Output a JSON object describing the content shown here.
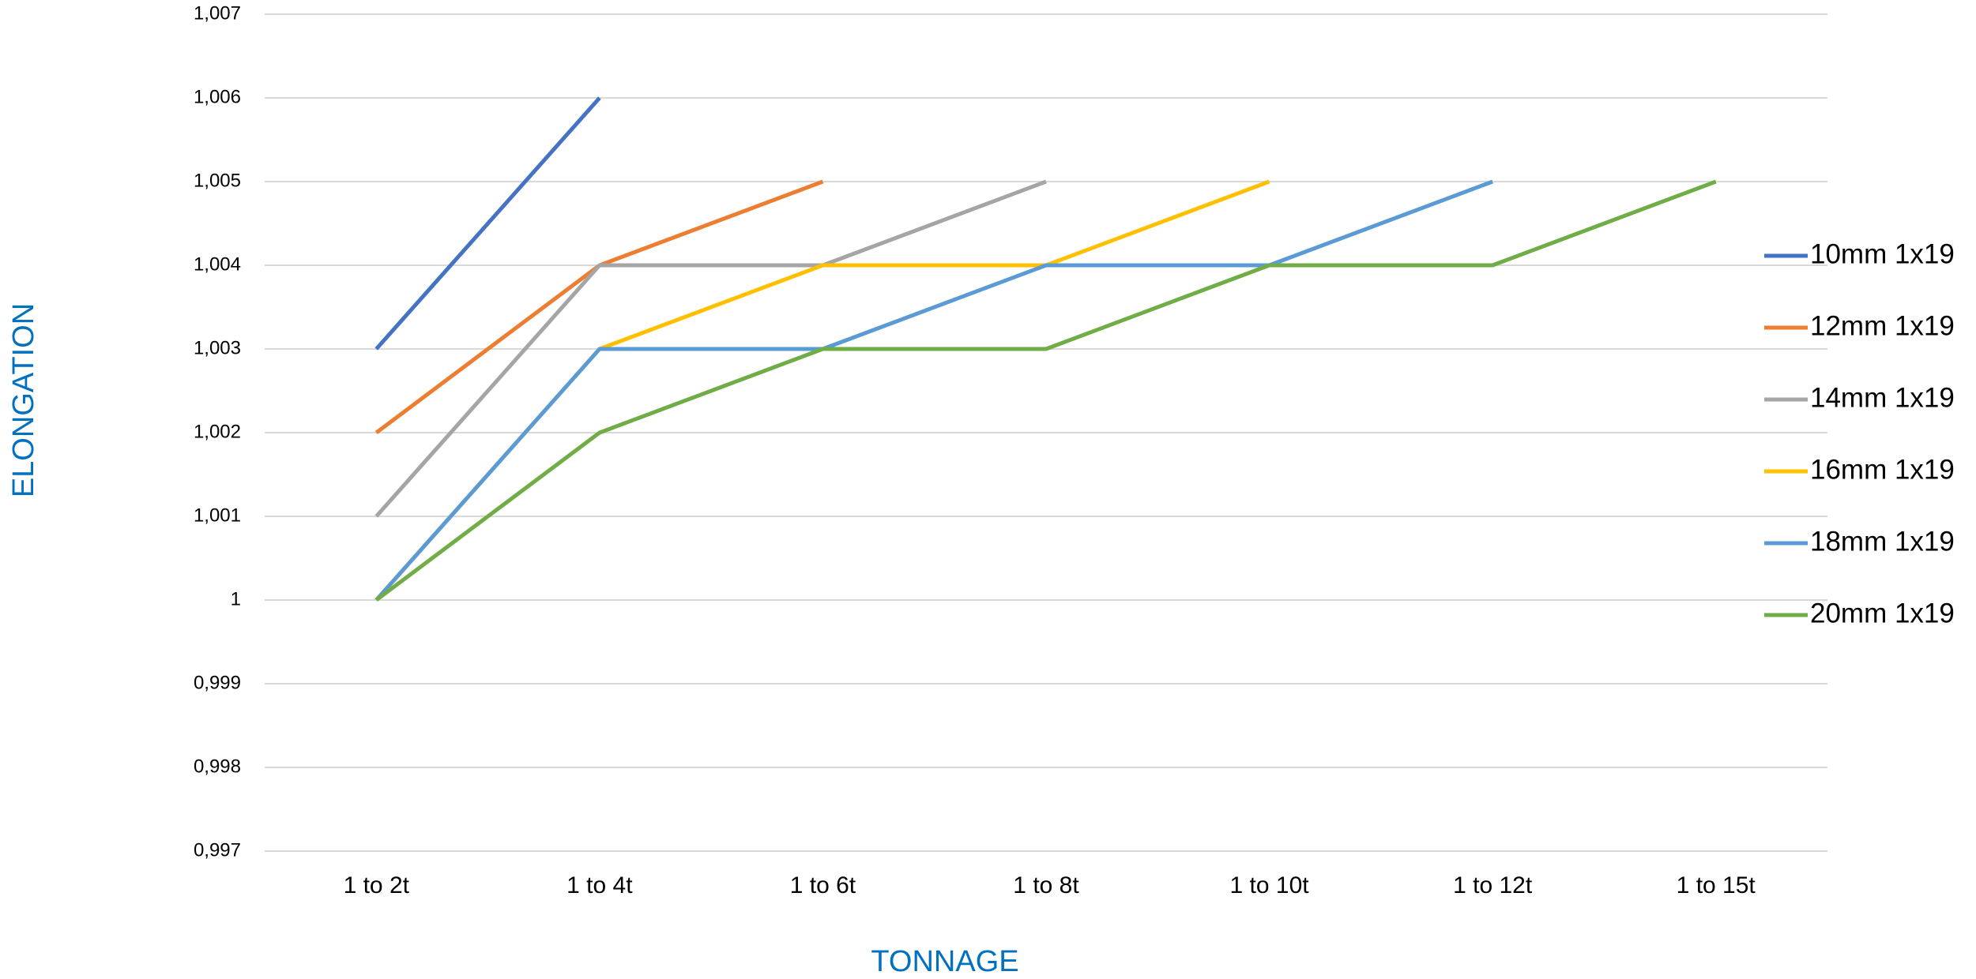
{
  "chart_data": {
    "type": "line",
    "x_label": "TONNAGE",
    "y_label": "ELONGATION",
    "categories": [
      "1 to 2t",
      "1 to 4t",
      "1 to 6t",
      "1 to 8t",
      "1 to 10t",
      "1 to 12t",
      "1 to 15t"
    ],
    "series": [
      {
        "name": "10mm 1x19",
        "color": "#4472c4",
        "values": [
          1.003,
          1.006,
          null,
          null,
          null,
          null,
          null
        ]
      },
      {
        "name": "12mm 1x19",
        "color": "#ed7d31",
        "values": [
          1.002,
          1.004,
          1.005,
          null,
          null,
          null,
          null
        ]
      },
      {
        "name": "14mm 1x19",
        "color": "#a5a5a5",
        "values": [
          1.001,
          1.004,
          1.004,
          1.005,
          null,
          null,
          null
        ]
      },
      {
        "name": "16mm 1x19",
        "color": "#ffc000",
        "values": [
          1.0,
          1.003,
          1.004,
          1.004,
          1.005,
          null,
          null
        ]
      },
      {
        "name": "18mm 1x19",
        "color": "#5b9bd5",
        "values": [
          1.0,
          1.003,
          1.003,
          1.004,
          1.004,
          1.005,
          null
        ]
      },
      {
        "name": "20mm 1x19",
        "color": "#70ad47",
        "values": [
          1.0,
          1.002,
          1.003,
          1.003,
          1.004,
          1.004,
          1.005
        ]
      }
    ],
    "ylim": [
      0.997,
      1.007
    ],
    "yticks": [
      {
        "value": 0.997,
        "label": "0,997"
      },
      {
        "value": 0.998,
        "label": "0,998"
      },
      {
        "value": 0.999,
        "label": "0,999"
      },
      1,
      {
        "value": 1.001,
        "label": "1,001"
      },
      {
        "value": 1.002,
        "label": "1,002"
      },
      {
        "value": 1.003,
        "label": "1,003"
      },
      {
        "value": 1.004,
        "label": "1,004"
      },
      {
        "value": 1.005,
        "label": "1,005"
      },
      {
        "value": 1.006,
        "label": "1,006"
      },
      {
        "value": 1.007,
        "label": "1,007"
      }
    ],
    "grid": true,
    "legend": "right"
  }
}
